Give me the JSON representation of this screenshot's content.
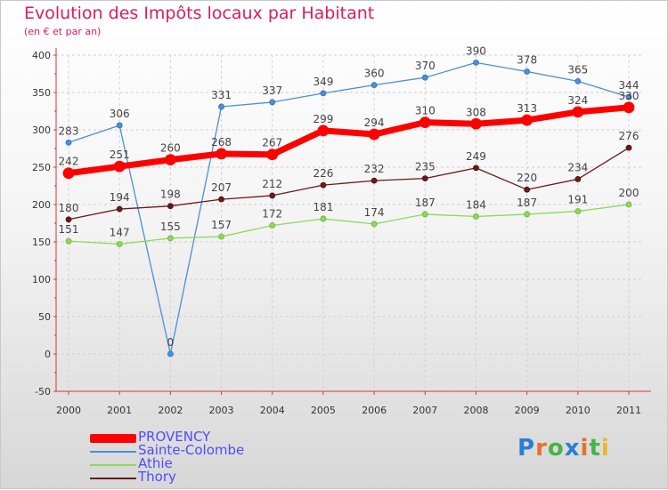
{
  "title": "Evolution des Impôts locaux par Habitant",
  "subtitle": "(en € et par an)",
  "logo_text": "Proxiti",
  "chart_data": {
    "type": "line",
    "title": "Evolution des Impôts locaux par Habitant",
    "subtitle": "(en € et par an)",
    "xlabel": "",
    "ylabel": "",
    "categories": [
      "2000",
      "2001",
      "2002",
      "2003",
      "2004",
      "2005",
      "2006",
      "2007",
      "2008",
      "2009",
      "2010",
      "2011"
    ],
    "y_ticks": [
      -50,
      0,
      50,
      100,
      150,
      200,
      250,
      300,
      350,
      400
    ],
    "ylim": [
      -50,
      400
    ],
    "grid": true,
    "legend_position": "bottom-left",
    "series": [
      {
        "name": "PROVENCY",
        "color": "#ff0000",
        "values": [
          242,
          251,
          260,
          268,
          267,
          299,
          294,
          310,
          308,
          313,
          324,
          330
        ]
      },
      {
        "name": "Sainte-Colombe",
        "color": "#4a90d9",
        "values": [
          283,
          306,
          0,
          331,
          337,
          349,
          360,
          370,
          390,
          378,
          365,
          344
        ]
      },
      {
        "name": "Athie",
        "color": "#8ed85a",
        "values": [
          151,
          147,
          155,
          157,
          172,
          181,
          174,
          187,
          184,
          187,
          191,
          200
        ]
      },
      {
        "name": "Thory",
        "color": "#6b1a1a",
        "values": [
          180,
          194,
          198,
          207,
          212,
          226,
          232,
          235,
          249,
          220,
          234,
          276
        ]
      }
    ]
  }
}
